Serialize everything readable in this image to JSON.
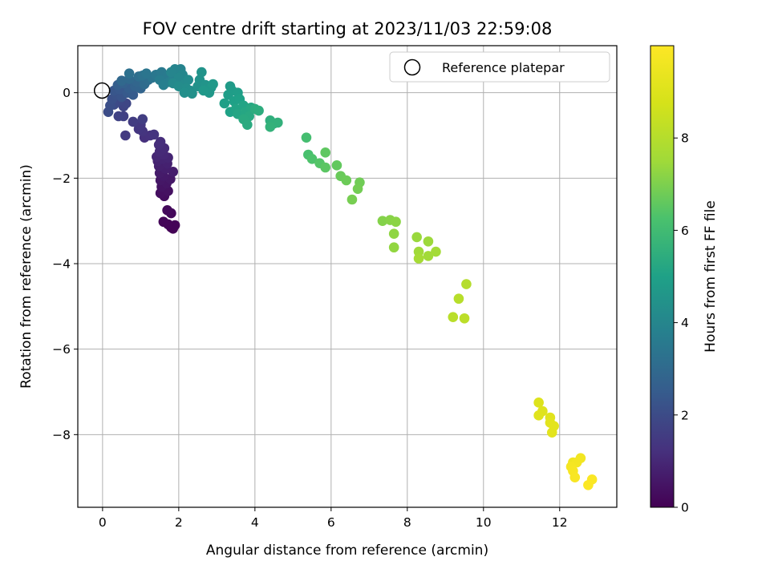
{
  "chart_data": {
    "type": "scatter",
    "title": "FOV centre drift starting at 2023/11/03 22:59:08",
    "xlabel": "Angular distance from reference (arcmin)",
    "ylabel": "Rotation from reference (arcmin)",
    "xlim": [
      -0.65,
      13.5
    ],
    "ylim": [
      -9.7,
      1.1
    ],
    "xticks": [
      0,
      2,
      4,
      6,
      8,
      10,
      12
    ],
    "yticks": [
      0,
      -2,
      -4,
      -6,
      -8
    ],
    "grid": true,
    "legend": {
      "position": "upper-right",
      "entries": [
        "Reference platepar"
      ]
    },
    "reference_point": {
      "x": 0,
      "y": 0,
      "label": "Reference platepar"
    },
    "colorbar": {
      "label": "Hours from first FF file",
      "range": [
        0,
        10
      ],
      "ticks": [
        0,
        2,
        4,
        6,
        8
      ],
      "colormap": "viridis"
    },
    "series": [
      {
        "color_variable": "hours",
        "points": [
          {
            "x": 1.85,
            "y": -3.18,
            "h": 0.02
          },
          {
            "x": 1.8,
            "y": -3.15,
            "h": 0.05
          },
          {
            "x": 1.9,
            "y": -3.1,
            "h": 0.08
          },
          {
            "x": 1.72,
            "y": -3.08,
            "h": 0.1
          },
          {
            "x": 1.6,
            "y": -3.02,
            "h": 0.13
          },
          {
            "x": 1.8,
            "y": -2.82,
            "h": 0.18
          },
          {
            "x": 1.7,
            "y": -2.75,
            "h": 0.22
          },
          {
            "x": 1.62,
            "y": -2.42,
            "h": 0.3
          },
          {
            "x": 1.52,
            "y": -2.35,
            "h": 0.35
          },
          {
            "x": 1.72,
            "y": -2.3,
            "h": 0.4
          },
          {
            "x": 1.55,
            "y": -2.2,
            "h": 0.45
          },
          {
            "x": 1.68,
            "y": -2.12,
            "h": 0.5
          },
          {
            "x": 1.52,
            "y": -2.05,
            "h": 0.55
          },
          {
            "x": 1.78,
            "y": -2.02,
            "h": 0.58
          },
          {
            "x": 1.6,
            "y": -1.95,
            "h": 0.62
          },
          {
            "x": 1.5,
            "y": -1.88,
            "h": 0.66
          },
          {
            "x": 1.85,
            "y": -1.85,
            "h": 0.7
          },
          {
            "x": 1.65,
            "y": -1.78,
            "h": 0.74
          },
          {
            "x": 1.48,
            "y": -1.72,
            "h": 0.78
          },
          {
            "x": 1.7,
            "y": -1.66,
            "h": 0.82
          },
          {
            "x": 1.45,
            "y": -1.6,
            "h": 0.86
          },
          {
            "x": 1.58,
            "y": -1.55,
            "h": 0.9
          },
          {
            "x": 1.72,
            "y": -1.52,
            "h": 0.93
          },
          {
            "x": 1.42,
            "y": -1.5,
            "h": 0.96
          },
          {
            "x": 1.6,
            "y": -1.45,
            "h": 1.0
          },
          {
            "x": 1.5,
            "y": -1.38,
            "h": 1.04
          },
          {
            "x": 1.62,
            "y": -1.3,
            "h": 1.08
          },
          {
            "x": 1.48,
            "y": -1.22,
            "h": 1.12
          },
          {
            "x": 1.52,
            "y": -1.15,
            "h": 1.16
          },
          {
            "x": 1.1,
            "y": -1.05,
            "h": 1.22
          },
          {
            "x": 1.25,
            "y": -1.0,
            "h": 1.26
          },
          {
            "x": 1.35,
            "y": -0.98,
            "h": 1.3
          },
          {
            "x": 1.05,
            "y": -0.9,
            "h": 1.34
          },
          {
            "x": 0.95,
            "y": -0.85,
            "h": 1.38
          },
          {
            "x": 1.0,
            "y": -0.75,
            "h": 1.42
          },
          {
            "x": 0.6,
            "y": -1.0,
            "h": 1.48
          },
          {
            "x": 0.8,
            "y": -0.68,
            "h": 1.54
          },
          {
            "x": 1.05,
            "y": -0.62,
            "h": 1.6
          },
          {
            "x": 0.55,
            "y": -0.55,
            "h": 1.66
          },
          {
            "x": 0.42,
            "y": -0.55,
            "h": 1.72
          },
          {
            "x": 0.55,
            "y": -0.32,
            "h": 1.78
          },
          {
            "x": 0.62,
            "y": -0.25,
            "h": 1.84
          },
          {
            "x": 0.42,
            "y": -0.2,
            "h": 1.9
          },
          {
            "x": 0.3,
            "y": -0.28,
            "h": 1.96
          },
          {
            "x": 0.15,
            "y": -0.45,
            "h": 2.02
          },
          {
            "x": 0.2,
            "y": -0.3,
            "h": 2.08
          },
          {
            "x": 0.25,
            "y": -0.15,
            "h": 2.14
          },
          {
            "x": 0.35,
            "y": -0.05,
            "h": 2.2
          },
          {
            "x": 0.5,
            "y": -0.1,
            "h": 2.26
          },
          {
            "x": 0.3,
            "y": 0.05,
            "h": 2.32
          },
          {
            "x": 0.45,
            "y": 0.08,
            "h": 2.38
          },
          {
            "x": 0.65,
            "y": 0.0,
            "h": 2.44
          },
          {
            "x": 0.8,
            "y": -0.05,
            "h": 2.5
          },
          {
            "x": 0.7,
            "y": 0.1,
            "h": 2.56
          },
          {
            "x": 0.4,
            "y": 0.18,
            "h": 2.62
          },
          {
            "x": 0.55,
            "y": 0.22,
            "h": 2.68
          },
          {
            "x": 0.85,
            "y": 0.15,
            "h": 2.74
          },
          {
            "x": 1.0,
            "y": 0.1,
            "h": 2.8
          },
          {
            "x": 0.9,
            "y": 0.25,
            "h": 2.86
          },
          {
            "x": 0.5,
            "y": 0.28,
            "h": 2.92
          },
          {
            "x": 0.7,
            "y": 0.32,
            "h": 2.98
          },
          {
            "x": 1.1,
            "y": 0.2,
            "h": 3.04
          },
          {
            "x": 1.2,
            "y": 0.3,
            "h": 3.1
          },
          {
            "x": 0.95,
            "y": 0.38,
            "h": 3.16
          },
          {
            "x": 0.7,
            "y": 0.45,
            "h": 3.22
          },
          {
            "x": 1.05,
            "y": 0.4,
            "h": 3.28
          },
          {
            "x": 1.3,
            "y": 0.35,
            "h": 3.34
          },
          {
            "x": 1.15,
            "y": 0.45,
            "h": 3.4
          },
          {
            "x": 1.4,
            "y": 0.42,
            "h": 3.46
          },
          {
            "x": 1.55,
            "y": 0.48,
            "h": 3.52
          },
          {
            "x": 1.7,
            "y": 0.4,
            "h": 3.58
          },
          {
            "x": 1.5,
            "y": 0.3,
            "h": 3.64
          },
          {
            "x": 1.75,
            "y": 0.25,
            "h": 3.7
          },
          {
            "x": 1.6,
            "y": 0.18,
            "h": 3.76
          },
          {
            "x": 1.85,
            "y": 0.3,
            "h": 3.82
          },
          {
            "x": 1.95,
            "y": 0.45,
            "h": 3.86
          },
          {
            "x": 2.05,
            "y": 0.55,
            "h": 3.9
          },
          {
            "x": 1.9,
            "y": 0.55,
            "h": 3.94
          },
          {
            "x": 1.8,
            "y": 0.48,
            "h": 3.98
          },
          {
            "x": 2.1,
            "y": 0.42,
            "h": 4.02
          },
          {
            "x": 2.0,
            "y": 0.35,
            "h": 4.06
          },
          {
            "x": 1.85,
            "y": 0.22,
            "h": 4.1
          },
          {
            "x": 2.15,
            "y": 0.2,
            "h": 4.14
          },
          {
            "x": 2.25,
            "y": 0.3,
            "h": 4.18
          },
          {
            "x": 2.0,
            "y": 0.15,
            "h": 4.22
          },
          {
            "x": 2.2,
            "y": 0.1,
            "h": 4.26
          },
          {
            "x": 2.3,
            "y": 0.05,
            "h": 4.3
          },
          {
            "x": 2.15,
            "y": 0.0,
            "h": 4.34
          },
          {
            "x": 2.35,
            "y": -0.02,
            "h": 4.38
          },
          {
            "x": 2.5,
            "y": 0.15,
            "h": 4.42
          },
          {
            "x": 2.55,
            "y": 0.3,
            "h": 4.46
          },
          {
            "x": 2.6,
            "y": 0.48,
            "h": 4.5
          },
          {
            "x": 2.7,
            "y": 0.18,
            "h": 4.54
          },
          {
            "x": 2.85,
            "y": 0.12,
            "h": 4.58
          },
          {
            "x": 2.8,
            "y": 0.0,
            "h": 4.62
          },
          {
            "x": 2.65,
            "y": 0.05,
            "h": 4.66
          },
          {
            "x": 2.9,
            "y": 0.2,
            "h": 4.7
          },
          {
            "x": 3.35,
            "y": 0.15,
            "h": 4.76
          },
          {
            "x": 3.4,
            "y": 0.05,
            "h": 4.8
          },
          {
            "x": 3.3,
            "y": -0.05,
            "h": 4.84
          },
          {
            "x": 3.55,
            "y": 0.0,
            "h": 4.88
          },
          {
            "x": 3.2,
            "y": -0.25,
            "h": 4.92
          },
          {
            "x": 3.45,
            "y": -0.2,
            "h": 4.96
          },
          {
            "x": 3.6,
            "y": -0.15,
            "h": 5.0
          },
          {
            "x": 3.35,
            "y": -0.45,
            "h": 5.04
          },
          {
            "x": 3.5,
            "y": -0.38,
            "h": 5.08
          },
          {
            "x": 3.7,
            "y": -0.3,
            "h": 5.12
          },
          {
            "x": 3.55,
            "y": -0.5,
            "h": 5.16
          },
          {
            "x": 3.75,
            "y": -0.45,
            "h": 5.2
          },
          {
            "x": 3.9,
            "y": -0.35,
            "h": 5.24
          },
          {
            "x": 3.85,
            "y": -0.55,
            "h": 5.28
          },
          {
            "x": 3.7,
            "y": -0.62,
            "h": 5.32
          },
          {
            "x": 3.8,
            "y": -0.75,
            "h": 5.36
          },
          {
            "x": 4.0,
            "y": -0.38,
            "h": 5.4
          },
          {
            "x": 4.1,
            "y": -0.42,
            "h": 5.44
          },
          {
            "x": 4.4,
            "y": -0.65,
            "h": 5.5
          },
          {
            "x": 4.5,
            "y": -0.72,
            "h": 5.54
          },
          {
            "x": 4.6,
            "y": -0.7,
            "h": 5.58
          },
          {
            "x": 4.4,
            "y": -0.8,
            "h": 5.62
          },
          {
            "x": 5.35,
            "y": -1.05,
            "h": 6.1
          },
          {
            "x": 5.4,
            "y": -1.45,
            "h": 6.2
          },
          {
            "x": 5.5,
            "y": -1.55,
            "h": 6.3
          },
          {
            "x": 5.7,
            "y": -1.65,
            "h": 6.4
          },
          {
            "x": 5.85,
            "y": -1.75,
            "h": 6.5
          },
          {
            "x": 5.85,
            "y": -1.4,
            "h": 6.55
          },
          {
            "x": 6.15,
            "y": -1.7,
            "h": 6.6
          },
          {
            "x": 6.25,
            "y": -1.95,
            "h": 6.7
          },
          {
            "x": 6.4,
            "y": -2.05,
            "h": 6.75
          },
          {
            "x": 6.75,
            "y": -2.1,
            "h": 6.8
          },
          {
            "x": 6.7,
            "y": -2.25,
            "h": 6.85
          },
          {
            "x": 6.55,
            "y": -2.5,
            "h": 6.9
          },
          {
            "x": 7.35,
            "y": -3.0,
            "h": 7.1
          },
          {
            "x": 7.55,
            "y": -2.98,
            "h": 7.15
          },
          {
            "x": 7.7,
            "y": -3.02,
            "h": 7.2
          },
          {
            "x": 7.65,
            "y": -3.3,
            "h": 7.25
          },
          {
            "x": 7.65,
            "y": -3.62,
            "h": 7.3
          },
          {
            "x": 8.25,
            "y": -3.38,
            "h": 7.4
          },
          {
            "x": 8.55,
            "y": -3.48,
            "h": 7.45
          },
          {
            "x": 8.3,
            "y": -3.72,
            "h": 7.5
          },
          {
            "x": 8.55,
            "y": -3.82,
            "h": 7.55
          },
          {
            "x": 8.75,
            "y": -3.72,
            "h": 7.6
          },
          {
            "x": 8.3,
            "y": -3.88,
            "h": 7.65
          },
          {
            "x": 9.55,
            "y": -4.48,
            "h": 8.0
          },
          {
            "x": 9.35,
            "y": -4.82,
            "h": 8.05
          },
          {
            "x": 9.2,
            "y": -5.25,
            "h": 8.1
          },
          {
            "x": 9.5,
            "y": -5.28,
            "h": 8.15
          },
          {
            "x": 11.45,
            "y": -7.25,
            "h": 9.0
          },
          {
            "x": 11.55,
            "y": -7.45,
            "h": 9.05
          },
          {
            "x": 11.45,
            "y": -7.55,
            "h": 9.1
          },
          {
            "x": 11.75,
            "y": -7.6,
            "h": 9.12
          },
          {
            "x": 11.75,
            "y": -7.72,
            "h": 9.15
          },
          {
            "x": 11.85,
            "y": -7.8,
            "h": 9.18
          },
          {
            "x": 11.8,
            "y": -7.95,
            "h": 9.2
          },
          {
            "x": 12.35,
            "y": -8.65,
            "h": 9.6
          },
          {
            "x": 12.55,
            "y": -8.55,
            "h": 9.65
          },
          {
            "x": 12.45,
            "y": -8.65,
            "h": 9.7
          },
          {
            "x": 12.3,
            "y": -8.75,
            "h": 9.75
          },
          {
            "x": 12.35,
            "y": -8.85,
            "h": 9.8
          },
          {
            "x": 12.4,
            "y": -9.0,
            "h": 9.85
          },
          {
            "x": 12.85,
            "y": -9.05,
            "h": 9.9
          },
          {
            "x": 12.75,
            "y": -9.18,
            "h": 9.95
          }
        ]
      }
    ]
  }
}
